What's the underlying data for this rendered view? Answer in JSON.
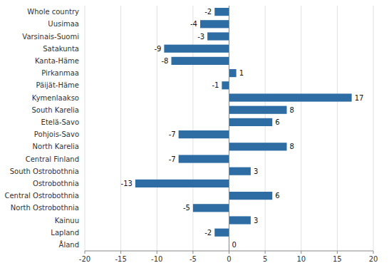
{
  "chart_data": {
    "type": "bar",
    "orientation": "horizontal",
    "categories": [
      "Whole country",
      "Uusimaa",
      "Varsinais-Suomi",
      "Satakunta",
      "Kanta-Häme",
      "Pirkanmaa",
      "Päijät-Häme",
      "Kymenlaakso",
      "South Karelia",
      "Etelä-Savo",
      "Pohjois-Savo",
      "North Karelia",
      "Central Finland",
      "South Ostrobothnia",
      "Ostrobothnia",
      "Central Ostrobothnia",
      "North Ostrobothnia",
      "Kainuu",
      "Lapland",
      "Åland"
    ],
    "values": [
      -2,
      -4,
      -3,
      -9,
      -8,
      1,
      -1,
      17,
      8,
      6,
      -7,
      8,
      -7,
      3,
      -13,
      6,
      -5,
      3,
      -2,
      0
    ],
    "color": "#2E6DA4",
    "xlim": [
      -20,
      20
    ],
    "xticks": [
      -20,
      -15,
      -10,
      -5,
      0,
      5,
      10,
      15,
      20
    ],
    "grid": true,
    "data_labels": true
  }
}
